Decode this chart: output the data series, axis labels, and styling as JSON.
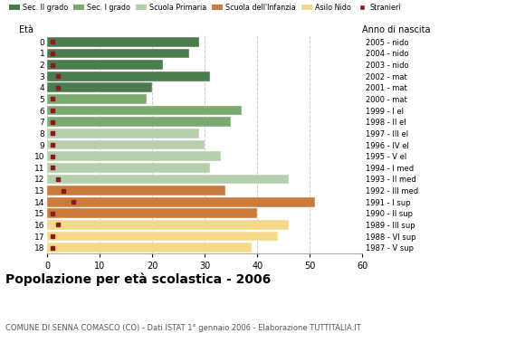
{
  "ages": [
    18,
    17,
    16,
    15,
    14,
    13,
    12,
    11,
    10,
    9,
    8,
    7,
    6,
    5,
    4,
    3,
    2,
    1,
    0
  ],
  "anno_nascita": [
    "1987 - V sup",
    "1988 - VI sup",
    "1989 - III sup",
    "1990 - II sup",
    "1991 - I sup",
    "1992 - III med",
    "1993 - II med",
    "1994 - I med",
    "1995 - V el",
    "1996 - IV el",
    "1997 - III el",
    "1998 - II el",
    "1999 - I el",
    "2000 - mat",
    "2001 - mat",
    "2002 - mat",
    "2003 - nido",
    "2004 - nido",
    "2005 - nido"
  ],
  "bar_values": [
    29,
    27,
    22,
    31,
    20,
    19,
    37,
    35,
    29,
    30,
    33,
    31,
    46,
    34,
    51,
    40,
    46,
    44,
    39
  ],
  "stranieri": [
    1,
    1,
    1,
    2,
    2,
    1,
    1,
    1,
    1,
    1,
    1,
    1,
    2,
    3,
    5,
    1,
    2,
    1,
    1
  ],
  "bar_colors": [
    "#4a7c4e",
    "#4a7c4e",
    "#4a7c4e",
    "#4a7c4e",
    "#4a7c4e",
    "#7aaa6e",
    "#7aaa6e",
    "#7aaa6e",
    "#b5ceab",
    "#b5ceab",
    "#b5ceab",
    "#b5ceab",
    "#b5ceab",
    "#cc7a3a",
    "#cc7a3a",
    "#cc7a3a",
    "#f5d98b",
    "#f5d98b",
    "#f5d98b"
  ],
  "stranieri_color": "#8b1a1a",
  "legend_labels": [
    "Sec. II grado",
    "Sec. I grado",
    "Scuola Primaria",
    "Scuola dell'Infanzia",
    "Asilo Nido",
    "Stranieri"
  ],
  "legend_colors": [
    "#4a7c4e",
    "#7aaa6e",
    "#b5ceab",
    "#cc7a3a",
    "#f5d98b",
    "#8b1a1a"
  ],
  "title": "Popolazione per età scolastica - 2006",
  "subtitle": "COMUNE DI SENNA COMASCO (CO) - Dati ISTAT 1° gennaio 2006 - Elaborazione TUTTITALIA.IT",
  "xlabel_eta": "Età",
  "xlabel_anno": "Anno di nascita",
  "xlim": [
    0,
    60
  ],
  "xticks": [
    0,
    10,
    20,
    30,
    40,
    50,
    60
  ],
  "grid_color": "#cccccc",
  "bg_color": "#ffffff",
  "bar_height": 0.85
}
